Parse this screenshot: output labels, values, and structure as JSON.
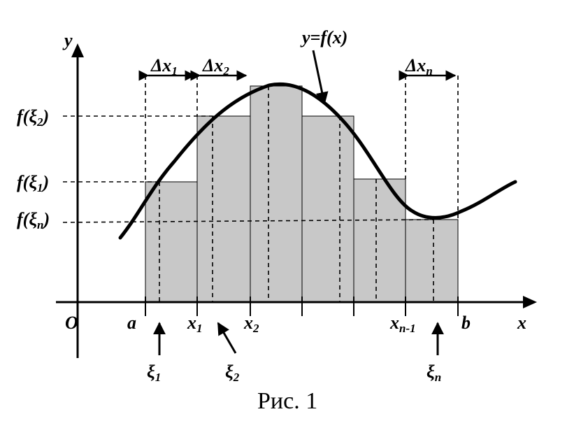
{
  "figure": {
    "caption": "Рис. 1",
    "function_label": "y=f(x)",
    "axes": {
      "x_label": "x",
      "y_label": "y",
      "origin_label": "O"
    },
    "x_ticks": [
      {
        "label": "a"
      },
      {
        "label": "x",
        "sub": "1"
      },
      {
        "label": "x",
        "sub": "2"
      },
      {
        "label": "x",
        "sub": "n-1"
      },
      {
        "label": "b"
      }
    ],
    "xi_labels": [
      {
        "label": "ξ",
        "sub": "1"
      },
      {
        "label": "ξ",
        "sub": "2"
      },
      {
        "label": "ξ",
        "sub": "n"
      }
    ],
    "delta_labels": [
      {
        "label": "Δx",
        "sub": "1"
      },
      {
        "label": "Δx",
        "sub": "2"
      },
      {
        "label": "Δx",
        "sub": "n"
      }
    ],
    "y_labels": [
      {
        "label": "f(ξ",
        "sub": "2",
        "close": ")"
      },
      {
        "label": "f(ξ",
        "sub": "1",
        "close": ")"
      },
      {
        "label": "f(ξ",
        "sub": "n",
        "close": ")"
      }
    ],
    "colors": {
      "bar_fill": "#c8c8c8",
      "stroke": "#000000",
      "background": "#ffffff"
    }
  }
}
